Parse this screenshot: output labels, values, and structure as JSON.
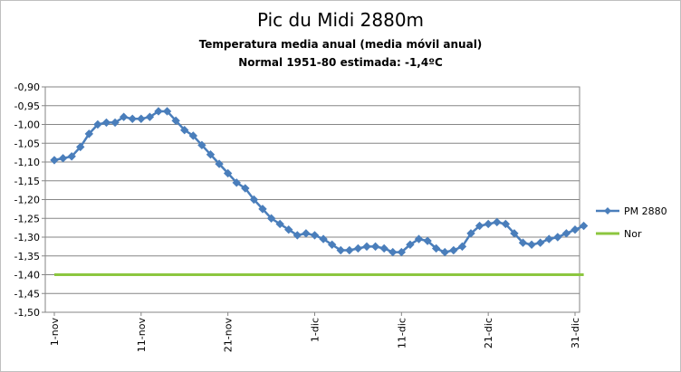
{
  "chart_data": {
    "type": "line",
    "title": "Pic du Midi 2880m",
    "subtitle_lines": [
      "Temperatura media anual (media móvil anual)",
      "Normal 1951-80 estimada: -1,4ºC"
    ],
    "x_tick_labels": [
      "1-nov",
      "11-nov",
      "21-nov",
      "1-dic",
      "11-dic",
      "21-dic",
      "31-dic"
    ],
    "x_tick_days": [
      1,
      11,
      21,
      31,
      41,
      51,
      61
    ],
    "y_tick_labels": [
      "-0,90",
      "-0,95",
      "-1,00",
      "-1,05",
      "-1,10",
      "-1,15",
      "-1,20",
      "-1,25",
      "-1,30",
      "-1,35",
      "-1,40",
      "-1,45",
      "-1,50"
    ],
    "ylim": [
      -1.5,
      -0.9
    ],
    "xlim": [
      1,
      61
    ],
    "grid": true,
    "legend_position": "right",
    "series": [
      {
        "name": "PM 2880",
        "color": "#4a7ebb",
        "marker": "diamond",
        "x": [
          1,
          2,
          3,
          4,
          5,
          6,
          7,
          8,
          9,
          10,
          11,
          12,
          13,
          14,
          15,
          16,
          17,
          18,
          19,
          20,
          21,
          22,
          23,
          24,
          25,
          26,
          27,
          28,
          29,
          30,
          31,
          32,
          33,
          34,
          35,
          36,
          37,
          38,
          39,
          40,
          41,
          42,
          43,
          44,
          45,
          46,
          47,
          48,
          49,
          50,
          51,
          52,
          53,
          54,
          55,
          56,
          57,
          58,
          59,
          60,
          61,
          62
        ],
        "values": [
          -1.095,
          -1.09,
          -1.085,
          -1.06,
          -1.025,
          -1.0,
          -0.995,
          -0.995,
          -0.98,
          -0.985,
          -0.985,
          -0.98,
          -0.965,
          -0.965,
          -0.99,
          -1.015,
          -1.03,
          -1.055,
          -1.08,
          -1.105,
          -1.13,
          -1.155,
          -1.17,
          -1.2,
          -1.225,
          -1.25,
          -1.265,
          -1.28,
          -1.295,
          -1.29,
          -1.295,
          -1.305,
          -1.32,
          -1.335,
          -1.335,
          -1.33,
          -1.325,
          -1.325,
          -1.33,
          -1.34,
          -1.34,
          -1.32,
          -1.305,
          -1.31,
          -1.33,
          -1.34,
          -1.335,
          -1.325,
          -1.29,
          -1.27,
          -1.265,
          -1.26,
          -1.265,
          -1.29,
          -1.315,
          -1.32,
          -1.315,
          -1.305,
          -1.3,
          -1.29,
          -1.28,
          -1.27
        ]
      },
      {
        "name": "Nor",
        "color": "#8cc63f",
        "marker": "none",
        "x": [
          1,
          62
        ],
        "values": [
          -1.4,
          -1.4
        ]
      }
    ]
  }
}
